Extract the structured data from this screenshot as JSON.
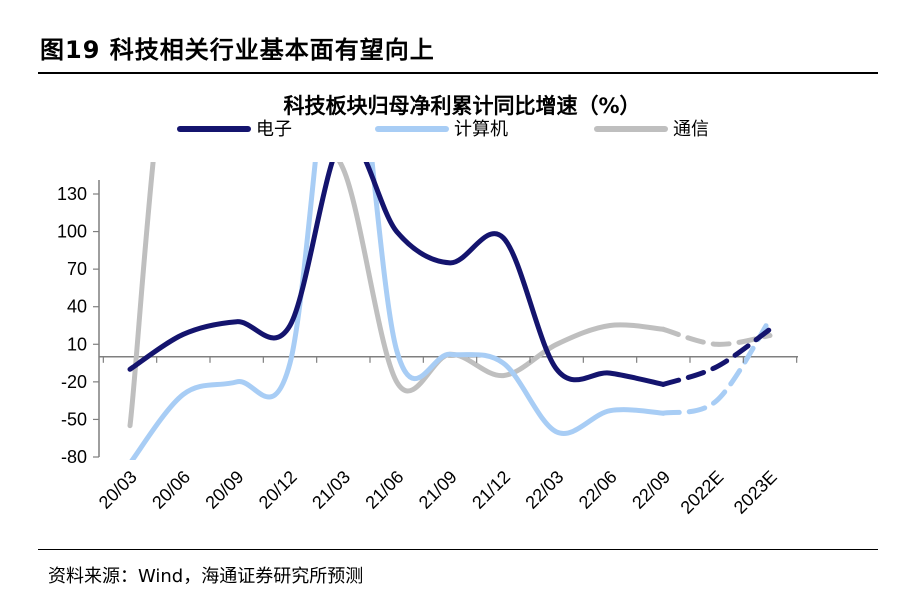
{
  "figure": {
    "title": "图19 科技相关行业基本面有望向上",
    "source": "资料来源：Wind，海通证券研究所预测"
  },
  "chart_data": {
    "type": "line",
    "title": "科技板块归母净利累计同比增速（%）",
    "xlabel": "",
    "ylabel": "",
    "categories": [
      "20/03",
      "20/06",
      "20/09",
      "20/12",
      "21/03",
      "21/06",
      "21/09",
      "21/12",
      "22/03",
      "22/06",
      "22/09",
      "2022E",
      "2023E"
    ],
    "yticks": [
      130,
      100,
      70,
      40,
      10,
      -20,
      -50,
      -80
    ],
    "ylim": [
      -80,
      150
    ],
    "grid": false,
    "legend": "top",
    "forecast_from_index": 10,
    "series": [
      {
        "name": "电子",
        "color": "#14146e",
        "values": [
          -10,
          18,
          28,
          25,
          175,
          100,
          75,
          95,
          -10,
          -13,
          -22,
          -8,
          22
        ]
      },
      {
        "name": "计算机",
        "color": "#a8cdf5",
        "values": [
          -85,
          -30,
          -20,
          -5,
          300,
          5,
          2,
          -5,
          -60,
          -43,
          -45,
          -35,
          30
        ]
      },
      {
        "name": "通信",
        "color": "#bfbfbf",
        "values": [
          -55,
          300,
          null,
          175,
          150,
          -20,
          2,
          -15,
          10,
          25,
          22,
          10,
          17
        ]
      }
    ]
  }
}
